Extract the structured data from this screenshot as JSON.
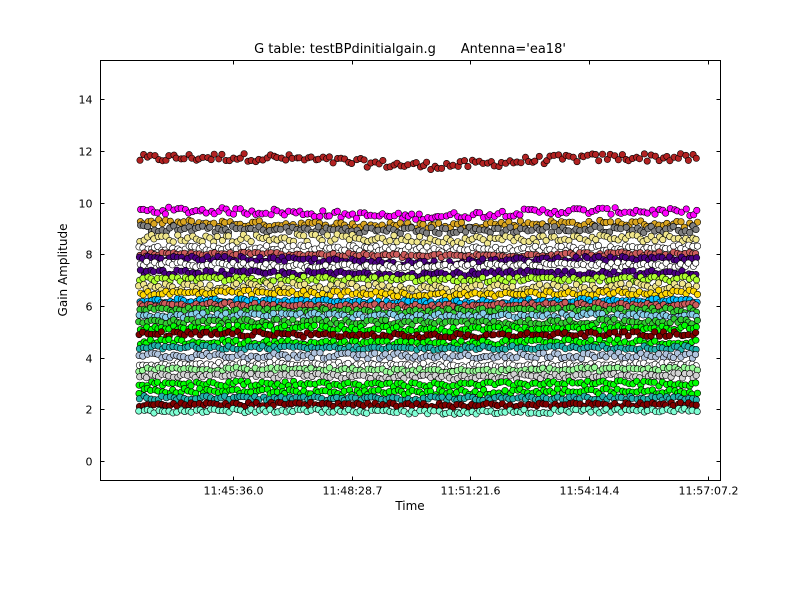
{
  "chart_data": {
    "type": "scatter",
    "title": "G table: testBPdinitialgain.g      Antenna='ea18'",
    "xlabel": "Time",
    "ylabel": "Gain Amplitude",
    "x_ticks": [
      "11:45:36.0",
      "11:48:28.7",
      "11:51:21.6",
      "11:54:14.4",
      "11:57:07.2"
    ],
    "x_tick_seconds": [
      42336.0,
      42508.7,
      42681.6,
      42854.4,
      43027.2
    ],
    "xlim_seconds": [
      42143.0,
      43046.0
    ],
    "x_data_range_seconds": [
      42200.0,
      43011.0
    ],
    "y_ticks": [
      0,
      2,
      4,
      6,
      8,
      10,
      12,
      14
    ],
    "ylim": [
      -0.75,
      15.5
    ],
    "grid": false,
    "marker": "circle",
    "marker_edge_color": "#000000",
    "bands": [
      {
        "color": "#b22222",
        "level": 11.7,
        "spread": 0.16,
        "wave": 0.2
      },
      {
        "color": "#ff00ff",
        "level": 9.65,
        "spread": 0.13,
        "wave": 0.15
      },
      {
        "color": "#daa520",
        "level": 9.2,
        "spread": 0.13,
        "wave": 0.1
      },
      {
        "color": "#808080",
        "level": 9.0,
        "spread": 0.13,
        "wave": 0.12
      },
      {
        "color": "#f0e68c",
        "level": 8.65,
        "spread": 0.15,
        "wave": 0.1
      },
      {
        "color": "#ffffff",
        "level": 8.25,
        "spread": 0.1,
        "wave": 0.05
      },
      {
        "color": "#cd5c5c",
        "level": 8.0,
        "spread": 0.08,
        "wave": 0.05
      },
      {
        "color": "#4b0082",
        "level": 7.8,
        "spread": 0.1,
        "wave": 0.1
      },
      {
        "color": "#ffffff",
        "level": 7.6,
        "spread": 0.1,
        "wave": 0.08
      },
      {
        "color": "#4b0082",
        "level": 7.3,
        "spread": 0.1,
        "wave": 0.08
      },
      {
        "color": "#adff2f",
        "level": 7.05,
        "spread": 0.1,
        "wave": 0.05
      },
      {
        "color": "#f0e68c",
        "level": 6.75,
        "spread": 0.15,
        "wave": 0.08
      },
      {
        "color": "#ffd700",
        "level": 6.5,
        "spread": 0.1,
        "wave": 0.05
      },
      {
        "color": "#00bfff",
        "level": 6.2,
        "spread": 0.08,
        "wave": 0.05
      },
      {
        "color": "#cd5c5c",
        "level": 6.05,
        "spread": 0.08,
        "wave": 0.05
      },
      {
        "color": "#32cd32",
        "level": 5.85,
        "spread": 0.1,
        "wave": 0.05
      },
      {
        "color": "#87ceeb",
        "level": 5.65,
        "spread": 0.1,
        "wave": 0.05
      },
      {
        "color": "#32cd32",
        "level": 5.4,
        "spread": 0.1,
        "wave": 0.05
      },
      {
        "color": "#00ff00",
        "level": 5.15,
        "spread": 0.1,
        "wave": 0.05
      },
      {
        "color": "#800000",
        "level": 4.9,
        "spread": 0.1,
        "wave": 0.05
      },
      {
        "color": "#00ff00",
        "level": 4.6,
        "spread": 0.1,
        "wave": 0.05
      },
      {
        "color": "#20b2aa",
        "level": 4.4,
        "spread": 0.08,
        "wave": 0.05
      },
      {
        "color": "#b0c4de",
        "level": 4.1,
        "spread": 0.12,
        "wave": 0.05
      },
      {
        "color": "#ffffff",
        "level": 3.75,
        "spread": 0.08,
        "wave": 0.05
      },
      {
        "color": "#98fb98",
        "level": 3.55,
        "spread": 0.08,
        "wave": 0.05
      },
      {
        "color": "#d3d3d3",
        "level": 3.3,
        "spread": 0.1,
        "wave": 0.05
      },
      {
        "color": "#00ff00",
        "level": 3.0,
        "spread": 0.1,
        "wave": 0.05
      },
      {
        "color": "#00ff00",
        "level": 2.7,
        "spread": 0.1,
        "wave": 0.05
      },
      {
        "color": "#20b2aa",
        "level": 2.45,
        "spread": 0.08,
        "wave": 0.05
      },
      {
        "color": "#800000",
        "level": 2.2,
        "spread": 0.08,
        "wave": 0.05
      },
      {
        "color": "#7fffd4",
        "level": 1.95,
        "spread": 0.08,
        "wave": 0.05
      }
    ]
  }
}
